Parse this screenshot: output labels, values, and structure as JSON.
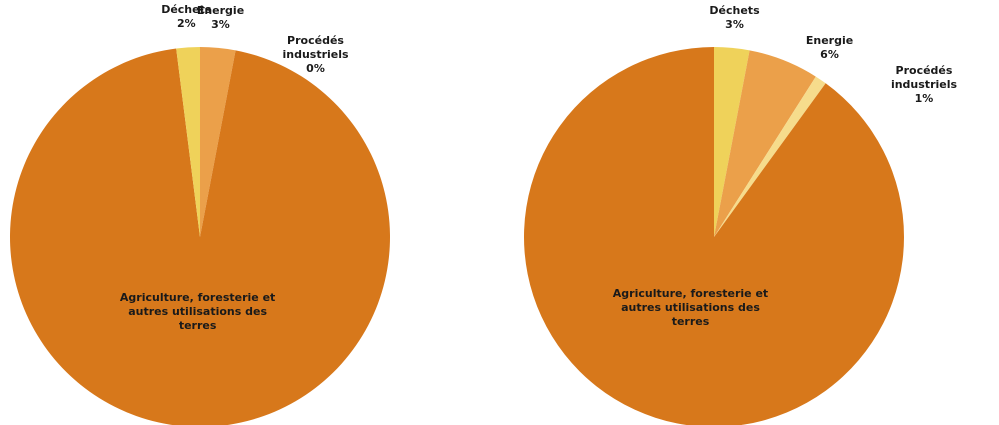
{
  "chart_data": [
    {
      "type": "pie",
      "categories": [
        "Energie",
        "Procédés industriels",
        "Agriculture, foresterie et autres utilisations des terres",
        "Déchets"
      ],
      "values": [
        3,
        0,
        95,
        2
      ],
      "value_labels": [
        "3%",
        "0%",
        null,
        "2%"
      ],
      "colors": [
        "#eba04a",
        "#f6dc8c",
        "#d7781b",
        "#efd25a"
      ]
    },
    {
      "type": "pie",
      "categories": [
        "Déchets",
        "Energie",
        "Procédés industriels",
        "Agriculture, foresterie et autres utilisations des terres"
      ],
      "values": [
        3,
        6,
        1,
        90
      ],
      "value_labels": [
        "3%",
        "6%",
        "1%",
        null
      ],
      "colors": [
        "#efd25a",
        "#eba04a",
        "#f6dc8c",
        "#d7781b"
      ]
    }
  ]
}
